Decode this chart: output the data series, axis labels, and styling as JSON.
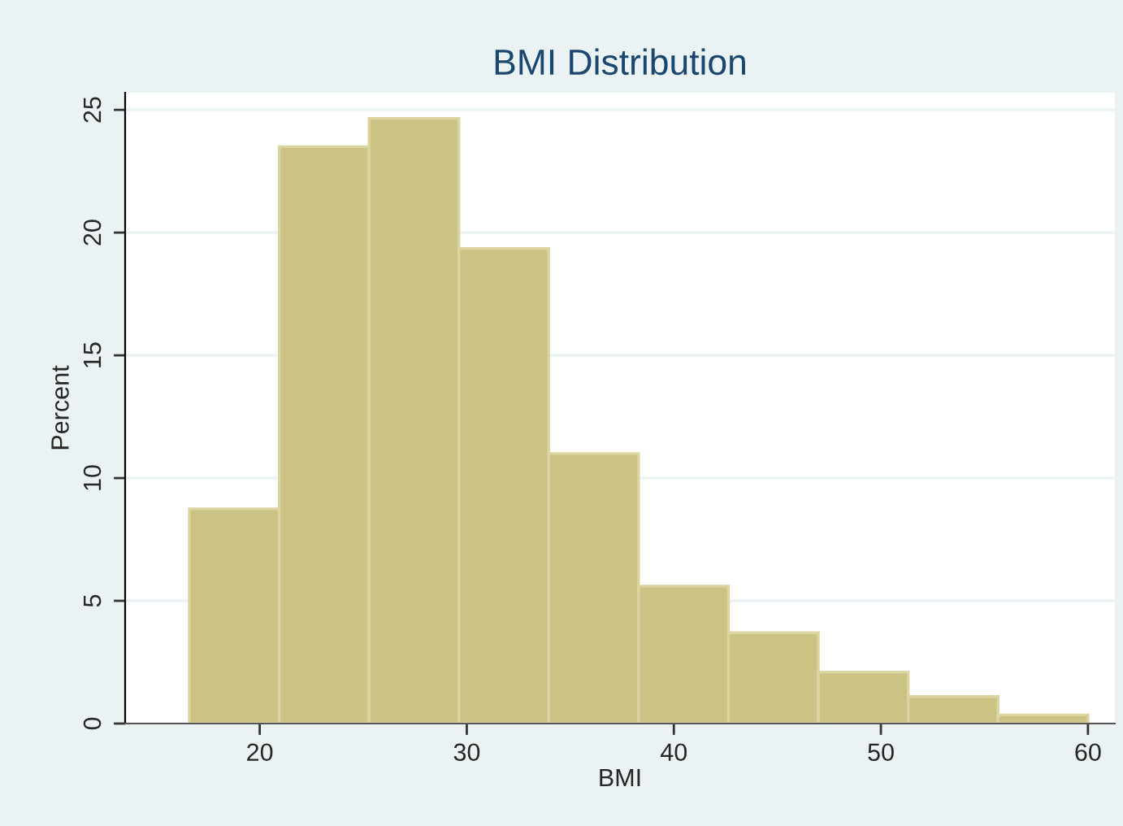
{
  "chart_data": {
    "type": "histogram",
    "title": "BMI Distribution",
    "xlabel": "BMI",
    "ylabel": "Percent",
    "bins": [
      16.6,
      20.94,
      25.28,
      29.62,
      33.96,
      38.3,
      42.64,
      46.98,
      51.32,
      55.66,
      60
    ],
    "values": [
      8.75,
      23.5,
      24.65,
      19.35,
      11.0,
      5.6,
      3.7,
      2.1,
      1.1,
      0.35
    ],
    "color": "#cbc383",
    "xlim": [
      13.5,
      61.3
    ],
    "xticks": [
      20,
      30,
      40,
      50,
      60
    ],
    "ylim": [
      0,
      25.7
    ],
    "yticks": [
      0,
      5,
      10,
      15,
      20,
      25
    ],
    "grid": "y",
    "legend": false
  }
}
